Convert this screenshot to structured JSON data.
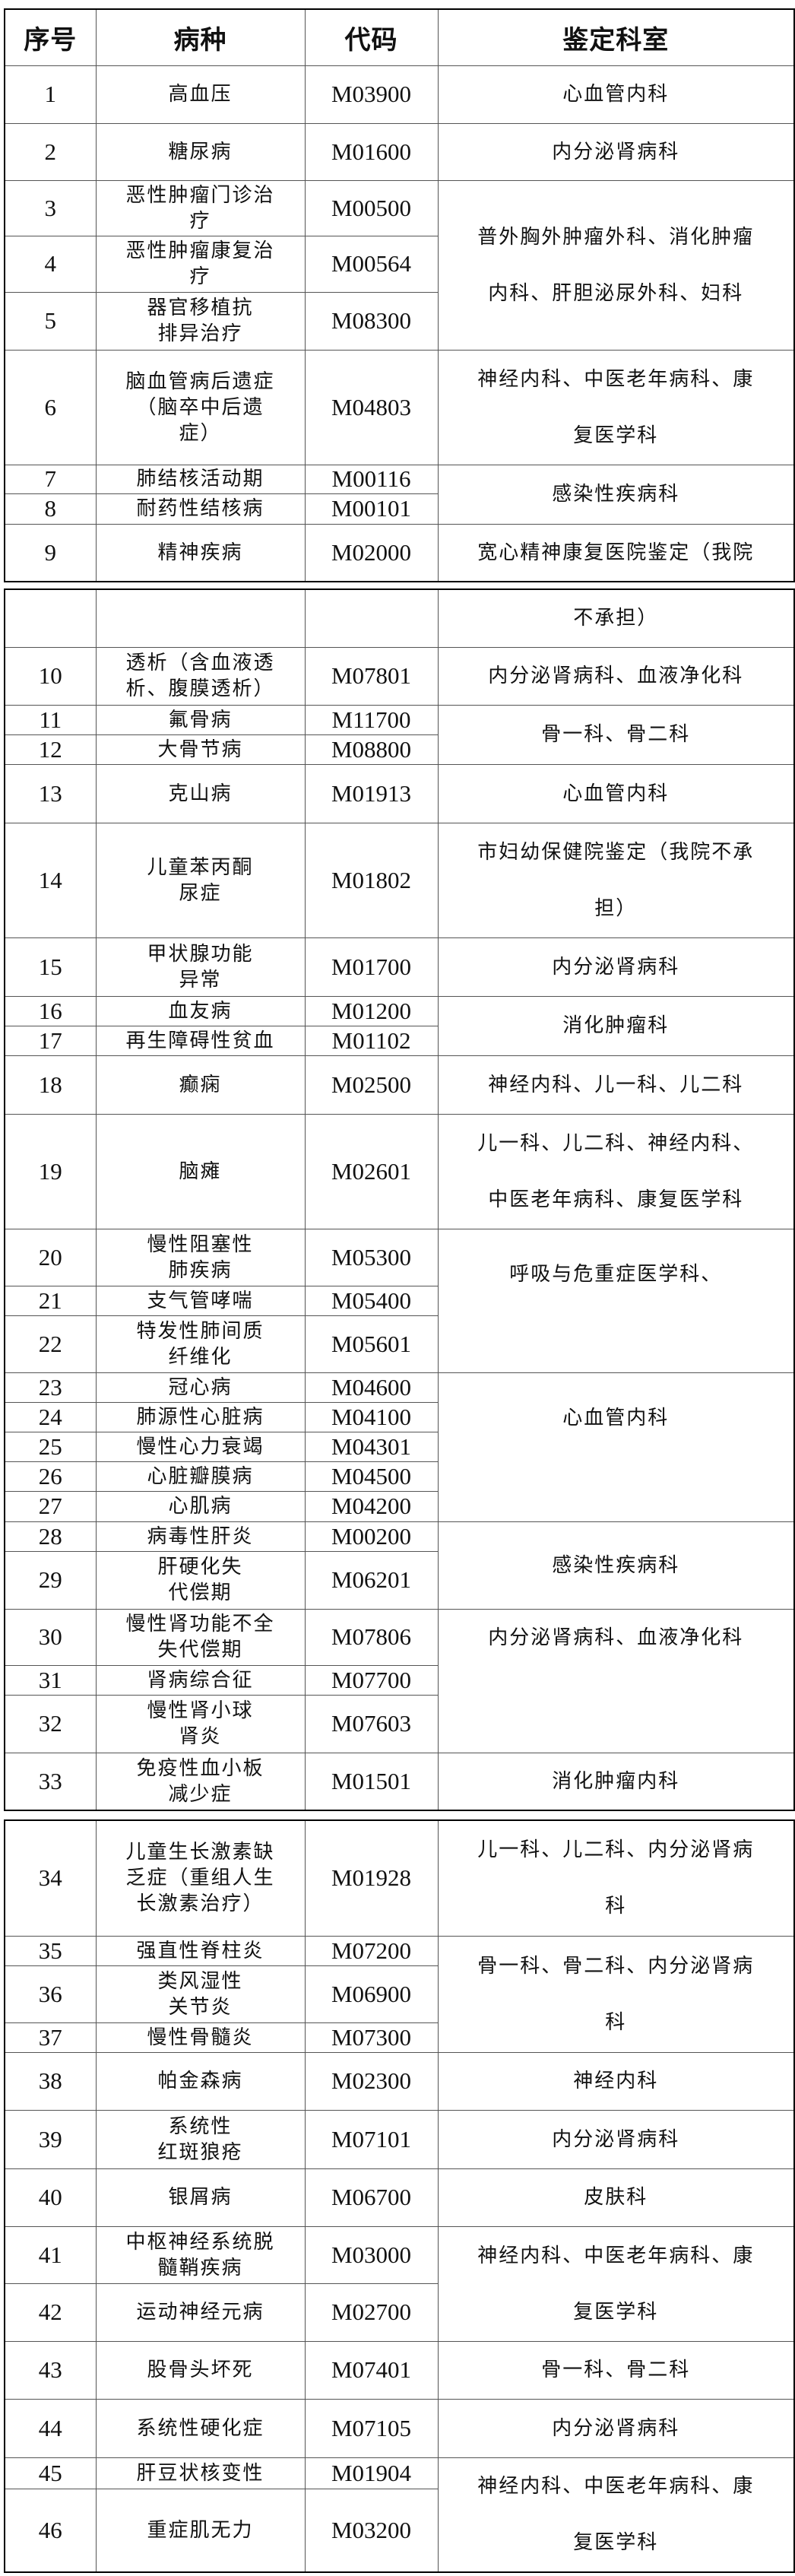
{
  "header": {
    "no": "序号",
    "name": "病种",
    "code": "代码",
    "dept": "鉴定科室"
  },
  "tables": [
    {
      "rows": [
        {
          "no": "1",
          "name": "高血压",
          "code": "M03900",
          "dept": "心血管内科",
          "span": 1
        },
        {
          "no": "2",
          "name": "糖尿病",
          "code": "M01600",
          "dept": "内分泌肾病科",
          "span": 1
        },
        {
          "no": "3",
          "name": "恶性肿瘤门诊治\n疗",
          "code": "M00500",
          "dept": "普外胸外肿瘤外科、消化肿瘤\n内科、肝胆泌尿外科、妇科",
          "span": 3
        },
        {
          "no": "4",
          "name": "恶性肿瘤康复治\n疗",
          "code": "M00564"
        },
        {
          "no": "5",
          "name": "器官移植抗\n排异治疗",
          "code": "M08300"
        },
        {
          "no": "6",
          "name": "脑血管病后遗症\n（脑卒中后遗\n症）",
          "code": "M04803",
          "dept": "神经内科、中医老年病科、康\n复医学科",
          "span": 1
        },
        {
          "no": "7",
          "name": "肺结核活动期",
          "code": "M00116",
          "dept": "感染性疾病科",
          "span": 2
        },
        {
          "no": "8",
          "name": "耐药性结核病",
          "code": "M00101"
        },
        {
          "no": "9",
          "name": "精神疾病",
          "code": "M02000",
          "dept": "宽心精神康复医院鉴定（我院",
          "span": 1
        }
      ]
    },
    {
      "rows": [
        {
          "no": "",
          "name": "",
          "code": "",
          "dept": "不承担）",
          "span": 1
        },
        {
          "no": "10",
          "name": "透析（含血液透\n析、腹膜透析）",
          "code": "M07801",
          "dept": "内分泌肾病科、血液净化科",
          "span": 1
        },
        {
          "no": "11",
          "name": "氟骨病",
          "code": "M11700",
          "dept": "骨一科、骨二科",
          "span": 2
        },
        {
          "no": "12",
          "name": "大骨节病",
          "code": "M08800"
        },
        {
          "no": "13",
          "name": "克山病",
          "code": "M01913",
          "dept": "心血管内科",
          "span": 1
        },
        {
          "no": "14",
          "name": "儿童苯丙酮\n尿症",
          "code": "M01802",
          "dept": "市妇幼保健院鉴定（我院不承\n担）",
          "span": 1
        },
        {
          "no": "15",
          "name": "甲状腺功能\n异常",
          "code": "M01700",
          "dept": "内分泌肾病科",
          "span": 1
        },
        {
          "no": "16",
          "name": "血友病",
          "code": "M01200",
          "dept": "消化肿瘤科",
          "span": 2
        },
        {
          "no": "17",
          "name": "再生障碍性贫血",
          "code": "M01102"
        },
        {
          "no": "18",
          "name": "癫痫",
          "code": "M02500",
          "dept": "神经内科、儿一科、儿二科",
          "span": 1
        },
        {
          "no": "19",
          "name": "脑瘫",
          "code": "M02601",
          "dept": "儿一科、儿二科、神经内科、\n中医老年病科、康复医学科",
          "span": 1
        },
        {
          "no": "20",
          "name": "慢性阻塞性\n肺疾病",
          "code": "M05300",
          "dept": "呼吸与危重症医学科、",
          "span": 3
        },
        {
          "no": "21",
          "name": "支气管哮喘",
          "code": "M05400"
        },
        {
          "no": "22",
          "name": "特发性肺间质\n纤维化",
          "code": "M05601"
        },
        {
          "no": "23",
          "name": "冠心病",
          "code": "M04600",
          "dept": "心血管内科",
          "span": 5
        },
        {
          "no": "24",
          "name": "肺源性心脏病",
          "code": "M04100"
        },
        {
          "no": "25",
          "name": "慢性心力衰竭",
          "code": "M04301"
        },
        {
          "no": "26",
          "name": "心脏瓣膜病",
          "code": "M04500"
        },
        {
          "no": "27",
          "name": "心肌病",
          "code": "M04200"
        },
        {
          "no": "28",
          "name": "病毒性肝炎",
          "code": "M00200",
          "dept": "感染性疾病科",
          "span": 2
        },
        {
          "no": "29",
          "name": "肝硬化失\n代偿期",
          "code": "M06201"
        },
        {
          "no": "30",
          "name": "慢性肾功能不全\n失代偿期",
          "code": "M07806",
          "dept": "内分泌肾病科、血液净化科",
          "span": 3
        },
        {
          "no": "31",
          "name": "肾病综合征",
          "code": "M07700"
        },
        {
          "no": "32",
          "name": "慢性肾小球\n肾炎",
          "code": "M07603"
        },
        {
          "no": "33",
          "name": "免疫性血小板\n减少症",
          "code": "M01501",
          "dept": "消化肿瘤内科",
          "span": 1
        }
      ]
    },
    {
      "rows": [
        {
          "no": "34",
          "name": "儿童生长激素缺\n乏症（重组人生\n长激素治疗）",
          "code": "M01928",
          "dept": "儿一科、儿二科、内分泌肾病\n科",
          "span": 1
        },
        {
          "no": "35",
          "name": "强直性脊柱炎",
          "code": "M07200",
          "dept": "骨一科、骨二科、内分泌肾病\n科",
          "span": 3
        },
        {
          "no": "36",
          "name": "类风湿性\n关节炎",
          "code": "M06900"
        },
        {
          "no": "37",
          "name": "慢性骨髓炎",
          "code": "M07300"
        },
        {
          "no": "38",
          "name": "帕金森病",
          "code": "M02300",
          "dept": "神经内科",
          "span": 1
        },
        {
          "no": "39",
          "name": "系统性\n红斑狼疮",
          "code": "M07101",
          "dept": "内分泌肾病科",
          "span": 1
        },
        {
          "no": "40",
          "name": "银屑病",
          "code": "M06700",
          "dept": "皮肤科",
          "span": 1
        },
        {
          "no": "41",
          "name": "中枢神经系统脱\n髓鞘疾病",
          "code": "M03000",
          "dept": "神经内科、中医老年病科、康\n复医学科",
          "span": 2
        },
        {
          "no": "42",
          "name": "运动神经元病",
          "code": "M02700"
        },
        {
          "no": "43",
          "name": "股骨头坏死",
          "code": "M07401",
          "dept": "骨一科、骨二科",
          "span": 1
        },
        {
          "no": "44",
          "name": "系统性硬化症",
          "code": "M07105",
          "dept": "内分泌肾病科",
          "span": 1
        },
        {
          "no": "45",
          "name": "肝豆状核变性",
          "code": "M01904",
          "dept": "神经内科、中医老年病科、康\n复医学科",
          "span": 2
        },
        {
          "no": "46",
          "name": "重症肌无力",
          "code": "M03200"
        }
      ]
    }
  ]
}
